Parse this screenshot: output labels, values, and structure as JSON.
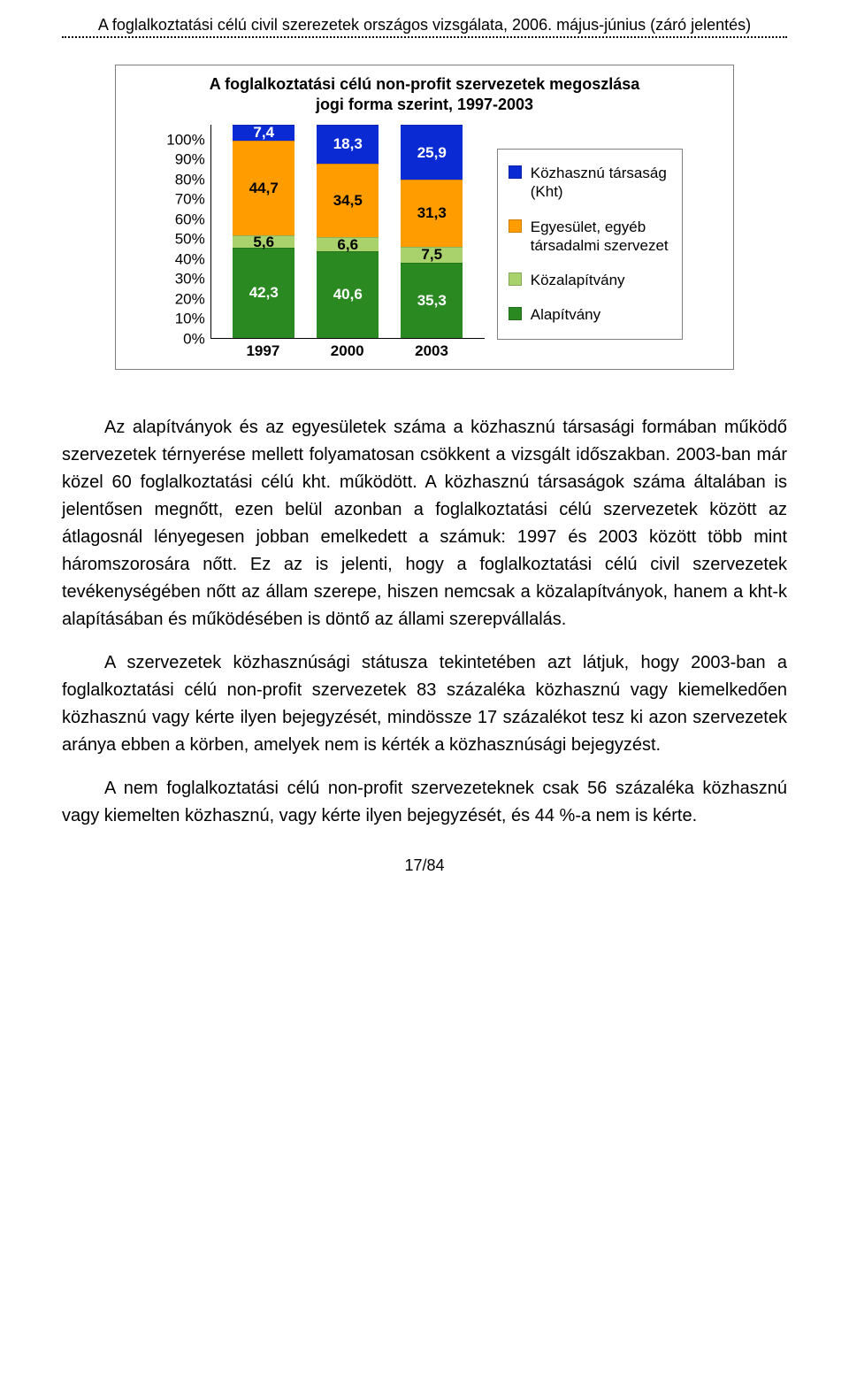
{
  "header": "A foglalkoztatási célú civil szerezetek országos vizsgálata, 2006. május-június (záró jelentés)",
  "chart": {
    "type": "stacked-bar",
    "title_l1": "A foglalkoztatási célú non-profit szervezetek megoszlása",
    "title_l2": "jogi forma szerint, 1997-2003",
    "y_ticks": [
      "0%",
      "10%",
      "20%",
      "30%",
      "40%",
      "50%",
      "60%",
      "70%",
      "80%",
      "90%",
      "100%"
    ],
    "x_labels": [
      "1997",
      "2000",
      "2003"
    ],
    "series": [
      {
        "key": "alapitvany",
        "label": "Alapítvány",
        "color": "#2a8a21"
      },
      {
        "key": "kozalapitvany",
        "label": "Közalapítvány",
        "color": "#a9d26d"
      },
      {
        "key": "egyesulet",
        "label": "Egyesület, egyéb társadalmi szervezet",
        "color": "#ff9d00"
      },
      {
        "key": "kht",
        "label": "Közhasznú társaság (Kht)",
        "color": "#0a2bd3"
      }
    ],
    "bars": [
      {
        "x": "1997",
        "segs": [
          {
            "k": "alapitvany",
            "v": 42.3,
            "t": "42,3"
          },
          {
            "k": "kozalapitvany",
            "v": 5.6,
            "t": "5,6"
          },
          {
            "k": "egyesulet",
            "v": 44.7,
            "t": "44,7"
          },
          {
            "k": "kht",
            "v": 7.4,
            "t": "7,4"
          }
        ]
      },
      {
        "x": "2000",
        "segs": [
          {
            "k": "alapitvany",
            "v": 40.6,
            "t": "40,6"
          },
          {
            "k": "kozalapitvany",
            "v": 6.6,
            "t": "6,6"
          },
          {
            "k": "egyesulet",
            "v": 34.5,
            "t": "34,5"
          },
          {
            "k": "kht",
            "v": 18.3,
            "t": "18,3"
          }
        ]
      },
      {
        "x": "2003",
        "segs": [
          {
            "k": "alapitvany",
            "v": 35.3,
            "t": "35,3"
          },
          {
            "k": "kozalapitvany",
            "v": 7.5,
            "t": "7,5"
          },
          {
            "k": "egyesulet",
            "v": 31.3,
            "t": "31,3"
          },
          {
            "k": "kht",
            "v": 25.9,
            "t": "25,9"
          }
        ]
      }
    ],
    "legend_order": [
      "kht",
      "egyesulet",
      "kozalapitvany",
      "alapitvany"
    ]
  },
  "paragraphs": [
    "Az alapítványok és az egyesületek száma a közhasznú társasági formában működő szervezetek térnyerése mellett folyamatosan csökkent a vizsgált időszakban. 2003-ban már közel 60 foglalkoztatási célú kht. működött. A közhasznú társaságok száma általában is jelentősen megnőtt, ezen belül azonban a foglalkoztatási célú szervezetek között az átlagosnál lényegesen jobban emelkedett a számuk: 1997 és 2003 között több mint háromszorosára nőtt. Ez az is jelenti, hogy a foglalkoztatási célú civil szervezetek tevékenységében nőtt az állam szerepe, hiszen nemcsak a közalapítványok, hanem a kht-k alapításában és működésében is döntő az állami szerepvállalás.",
    "A szervezetek közhasznúsági státusza tekintetében azt látjuk, hogy 2003-ban a foglalkoztatási célú non-profit szervezetek 83 százaléka közhasznú vagy kiemelkedően közhasznú vagy kérte ilyen bejegyzését, mindössze 17 százalékot tesz ki azon szervezetek aránya ebben a körben, amelyek nem is kérték a közhasznúsági bejegyzést.",
    "A nem foglalkoztatási célú non-profit szervezeteknek csak 56 százaléka közhasznú vagy kiemelten közhasznú, vagy kérte ilyen bejegyzését, és 44 %-a nem is kérte."
  ],
  "page_number": "17/84"
}
